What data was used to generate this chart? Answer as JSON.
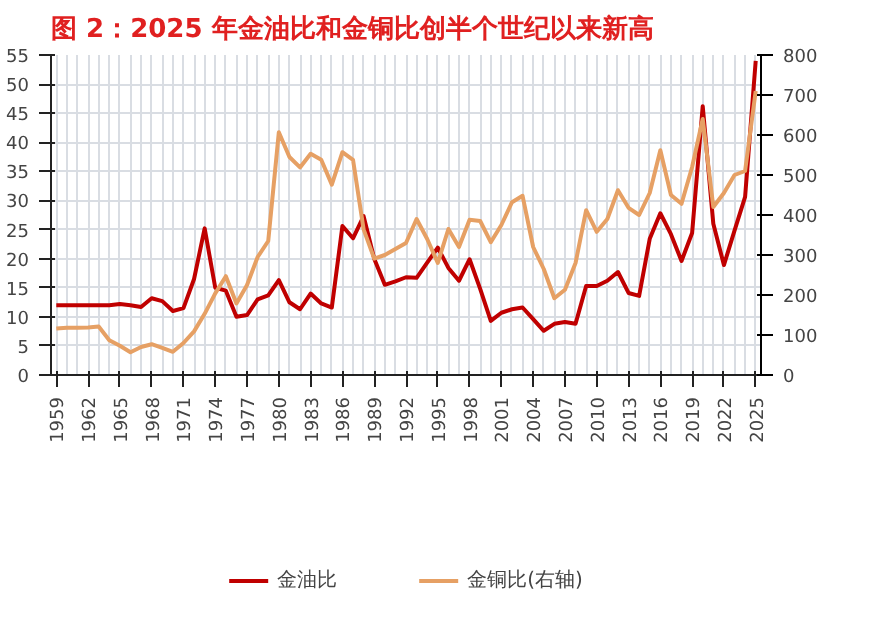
{
  "chart_data": {
    "type": "line",
    "title": "图 2：2025 年金油比和金铜比创半个世纪以来新高",
    "x": [
      1959,
      1960,
      1961,
      1962,
      1963,
      1964,
      1965,
      1966,
      1967,
      1968,
      1969,
      1970,
      1971,
      1972,
      1973,
      1974,
      1975,
      1976,
      1977,
      1978,
      1979,
      1980,
      1981,
      1982,
      1983,
      1984,
      1985,
      1986,
      1987,
      1988,
      1989,
      1990,
      1991,
      1992,
      1993,
      1994,
      1995,
      1996,
      1997,
      1998,
      1999,
      2000,
      2001,
      2002,
      2003,
      2004,
      2005,
      2006,
      2007,
      2008,
      2009,
      2010,
      2011,
      2012,
      2013,
      2014,
      2015,
      2016,
      2017,
      2018,
      2019,
      2020,
      2021,
      2022,
      2023,
      2024,
      2025
    ],
    "series": [
      {
        "name": "金油比",
        "color": "#c00000",
        "values": [
          12,
          12,
          12,
          12,
          12,
          12,
          12.2,
          12,
          11.7,
          13.2,
          12.7,
          11,
          11.5,
          16.5,
          25.2,
          15,
          14.5,
          10,
          10.3,
          13,
          13.7,
          16.3,
          12.5,
          11.3,
          14,
          12.3,
          11.6,
          25.6,
          23.5,
          27.3,
          20,
          15.5,
          16.1,
          16.8,
          16.7,
          19.3,
          21.9,
          18.4,
          16.2,
          19.9,
          14.8,
          9.3,
          10.7,
          11.3,
          11.6,
          9.6,
          7.6,
          8.8,
          9.1,
          8.8,
          15.3,
          15.3,
          16.2,
          17.7,
          14.1,
          13.6,
          23.4,
          27.8,
          24.2,
          19.6,
          24.4,
          46.2,
          26,
          18.9,
          24.8,
          30.6,
          54
        ]
      },
      {
        "name": "金铜比(右轴)",
        "color": "#e6a064",
        "axis": "y2",
        "values": [
          116,
          118,
          118,
          119,
          121,
          87,
          73,
          57,
          70,
          77,
          68,
          58,
          80,
          109,
          153,
          204,
          247,
          179,
          225,
          295,
          335,
          607,
          545,
          519,
          553,
          538,
          476,
          557,
          538,
          364,
          291,
          300,
          315,
          330,
          390,
          340,
          280,
          365,
          320,
          388,
          385,
          332,
          375,
          432,
          448,
          320,
          265,
          192,
          213,
          280,
          412,
          358,
          390,
          462,
          418,
          400,
          455,
          562,
          450,
          428,
          520,
          640,
          420,
          455,
          500,
          510,
          710
        ]
      }
    ],
    "xlim": [
      1958.5,
      2025.5
    ],
    "xticks": [
      1959,
      1962,
      1965,
      1968,
      1971,
      1974,
      1977,
      1980,
      1983,
      1986,
      1989,
      1992,
      1995,
      1998,
      2001,
      2004,
      2007,
      2010,
      2013,
      2016,
      2019,
      2022,
      2025
    ],
    "ylim": [
      0,
      55
    ],
    "yticks": [
      0,
      5,
      10,
      15,
      20,
      25,
      30,
      35,
      40,
      45,
      50,
      55
    ],
    "y2lim": [
      0,
      800
    ],
    "y2ticks": [
      0,
      100,
      200,
      300,
      400,
      500,
      600,
      700,
      800
    ],
    "grid": true,
    "legend": "bottom",
    "marker": "none",
    "line_style": "solid"
  }
}
